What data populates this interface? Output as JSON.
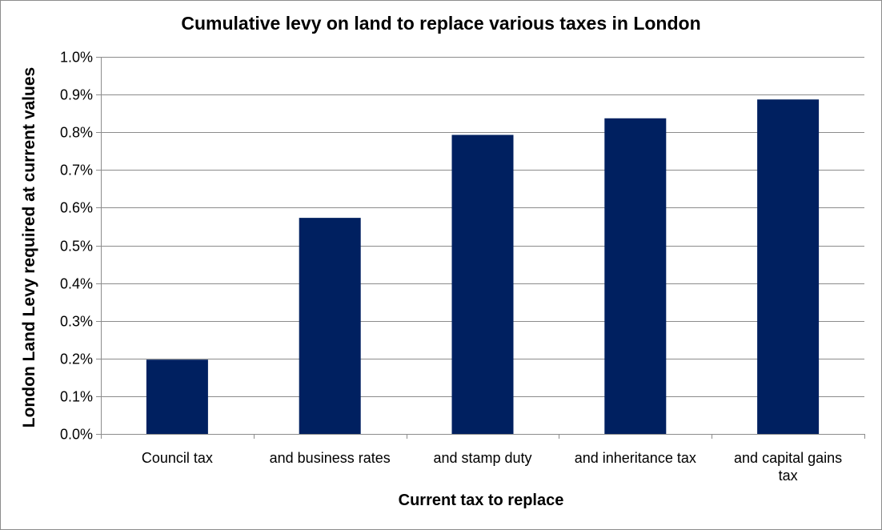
{
  "chart_data": {
    "type": "bar",
    "title": "Cumulative levy on land to replace various taxes in London",
    "xlabel": "Current tax to replace",
    "ylabel": "London Land Levy required at current values",
    "categories": [
      "Council tax",
      "and business rates",
      "and stamp duty",
      "and inheritance tax",
      "and capital gains tax"
    ],
    "category_lines": [
      [
        "Council tax"
      ],
      [
        "and business rates"
      ],
      [
        "and stamp duty"
      ],
      [
        "and inheritance tax"
      ],
      [
        "and capital gains",
        "tax"
      ]
    ],
    "values": [
      0.197,
      0.573,
      0.793,
      0.837,
      0.887
    ],
    "ylim": [
      0,
      1.0
    ],
    "yticks": [
      "0.0%",
      "0.1%",
      "0.2%",
      "0.3%",
      "0.4%",
      "0.5%",
      "0.6%",
      "0.7%",
      "0.8%",
      "0.9%",
      "1.0%"
    ],
    "grid": true,
    "legend": "none",
    "bar_color": "#002060",
    "grid_color": "#8c8c8c"
  }
}
